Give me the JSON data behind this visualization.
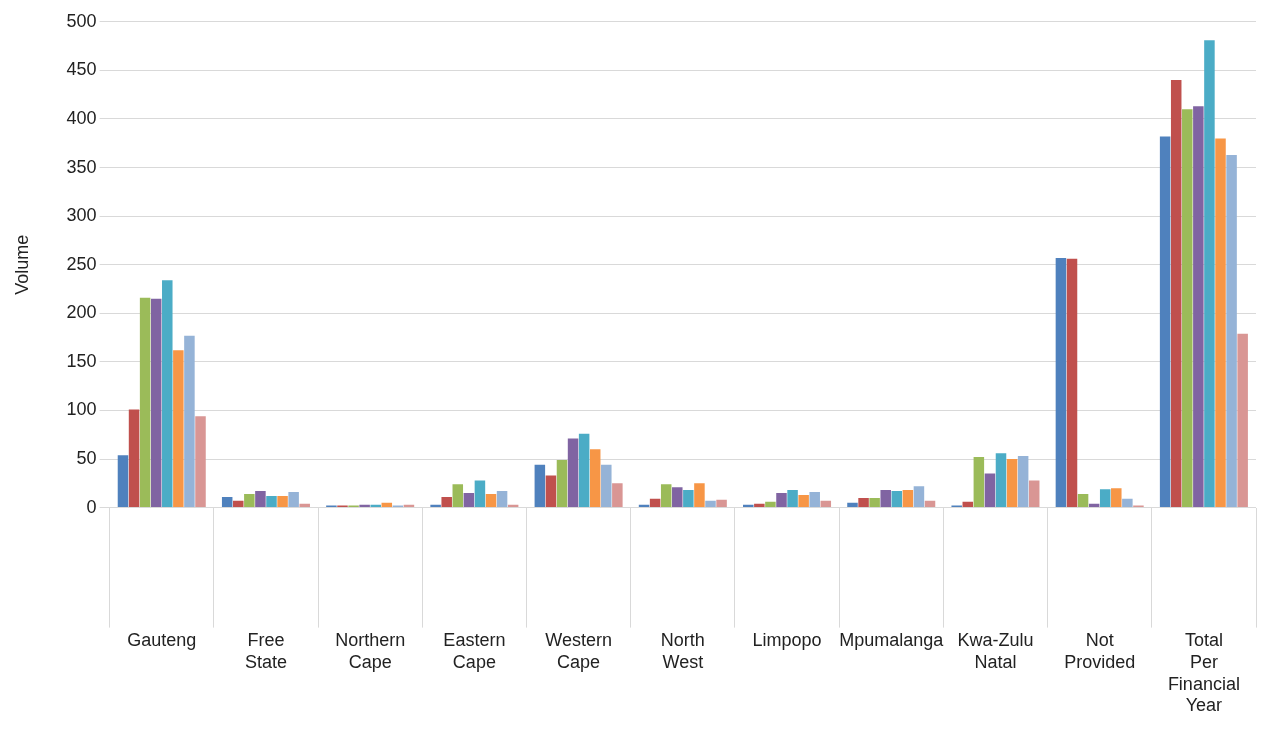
{
  "chart_data": {
    "type": "bar",
    "ylabel": "Volume",
    "categories": [
      "Gauteng",
      "Free State",
      "Northern Cape",
      "Eastern Cape",
      "Western Cape",
      "North West",
      "Limpopo",
      "Mpumalanga",
      "Kwa-Zulu Natal",
      "Not Provided",
      "Total Per Financial Year"
    ],
    "series": [
      {
        "color": "#4f81bd",
        "values": [
          54,
          11,
          1,
          3,
          44,
          3,
          3,
          5,
          1,
          257,
          382
        ]
      },
      {
        "color": "#c0504d",
        "values": [
          101,
          7,
          2,
          11,
          33,
          9,
          4,
          10,
          6,
          256,
          440
        ]
      },
      {
        "color": "#9bbb59",
        "values": [
          216,
          14,
          1,
          24,
          49,
          24,
          6,
          10,
          52,
          14,
          410
        ]
      },
      {
        "color": "#8064a2",
        "values": [
          215,
          17,
          3,
          15,
          71,
          21,
          15,
          18,
          35,
          4,
          413
        ]
      },
      {
        "color": "#4bacc6",
        "values": [
          234,
          12,
          3,
          28,
          76,
          18,
          18,
          17,
          56,
          19,
          481
        ]
      },
      {
        "color": "#f79646",
        "values": [
          162,
          12,
          5,
          14,
          60,
          25,
          13,
          18,
          50,
          20,
          380
        ]
      },
      {
        "color": "#95b3d7",
        "values": [
          177,
          16,
          2,
          17,
          44,
          7,
          16,
          22,
          53,
          9,
          363
        ]
      },
      {
        "color": "#d99694",
        "values": [
          94,
          4,
          3,
          3,
          25,
          8,
          7,
          7,
          28,
          1,
          179
        ]
      }
    ],
    "ylim": [
      0,
      500
    ],
    "yticks": [
      0,
      50,
      100,
      150,
      200,
      250,
      300,
      350,
      400,
      450,
      500
    ],
    "grid": "y",
    "legend": false
  }
}
